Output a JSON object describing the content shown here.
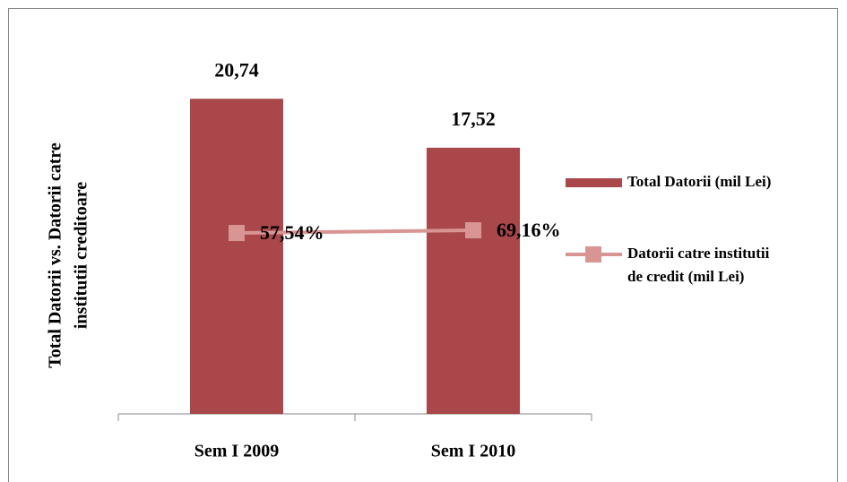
{
  "chart_data": {
    "type": "bar_line",
    "y_axis_title": "Total Datorii vs. Datorii catre institutii creditoare",
    "categories": [
      "Sem I 2009",
      "Sem I 2010"
    ],
    "series": [
      {
        "name": "Total Datorii (mil Lei)",
        "type": "bar",
        "color": "#a9474a",
        "values": [
          20.74,
          17.52
        ],
        "value_labels": [
          "20,74",
          "17,52"
        ]
      },
      {
        "name": "Datorii catre institutii de credit (mil Lei)",
        "type": "line",
        "axis": "y2",
        "color": "#d99594",
        "values": [
          57.54,
          69.16
        ],
        "value_labels": [
          "57,54%",
          "69,16%"
        ]
      }
    ],
    "ylim": [
      0,
      25
    ],
    "y2lim": [
      -725,
      918
    ],
    "legend": "right"
  }
}
